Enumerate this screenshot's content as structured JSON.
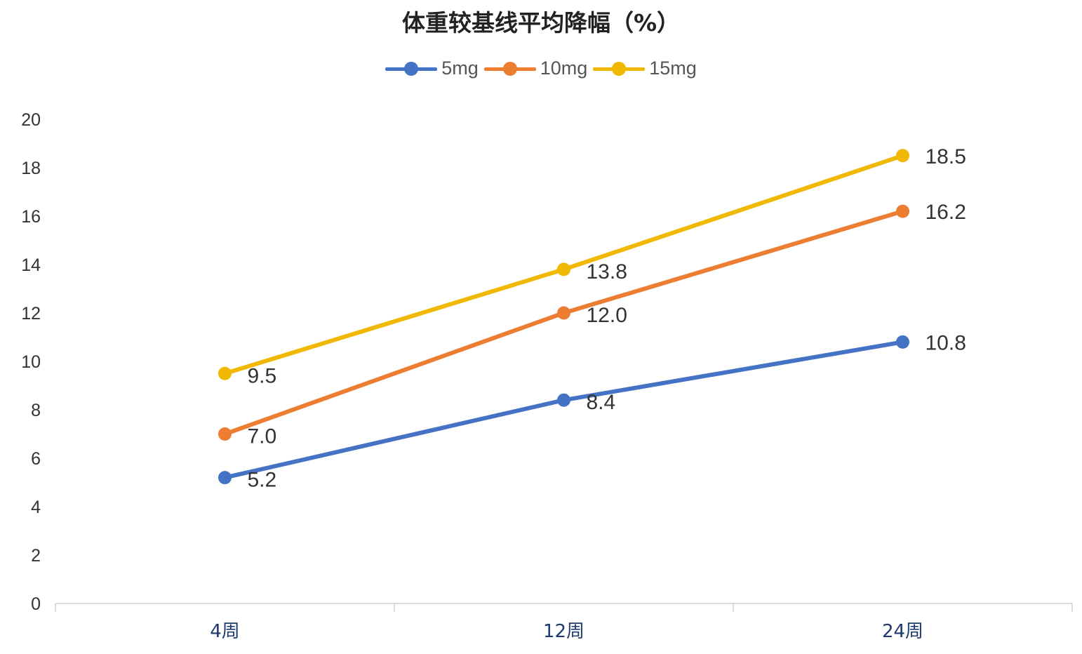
{
  "chart_data": {
    "type": "line",
    "title": "体重较基线平均降幅（%）",
    "categories": [
      "4周",
      "12周",
      "24周"
    ],
    "series": [
      {
        "name": "5mg",
        "color": "#4472c4",
        "values": [
          5.2,
          8.4,
          10.8
        ],
        "labels": [
          "5.2",
          "8.4",
          "10.8"
        ]
      },
      {
        "name": "10mg",
        "color": "#ed7d31",
        "values": [
          7.0,
          12.0,
          16.2
        ],
        "labels": [
          "7.0",
          "12.0",
          "16.2"
        ]
      },
      {
        "name": "15mg",
        "color": "#f0b800",
        "values": [
          9.5,
          13.8,
          18.5
        ],
        "labels": [
          "9.5",
          "13.8",
          "18.5"
        ]
      }
    ],
    "ylim": [
      0,
      20
    ],
    "yticks": [
      "0",
      "2",
      "4",
      "6",
      "8",
      "10",
      "12",
      "14",
      "16",
      "18",
      "20"
    ],
    "legend": "top-center",
    "grid": false,
    "xlabel": "",
    "ylabel": ""
  }
}
